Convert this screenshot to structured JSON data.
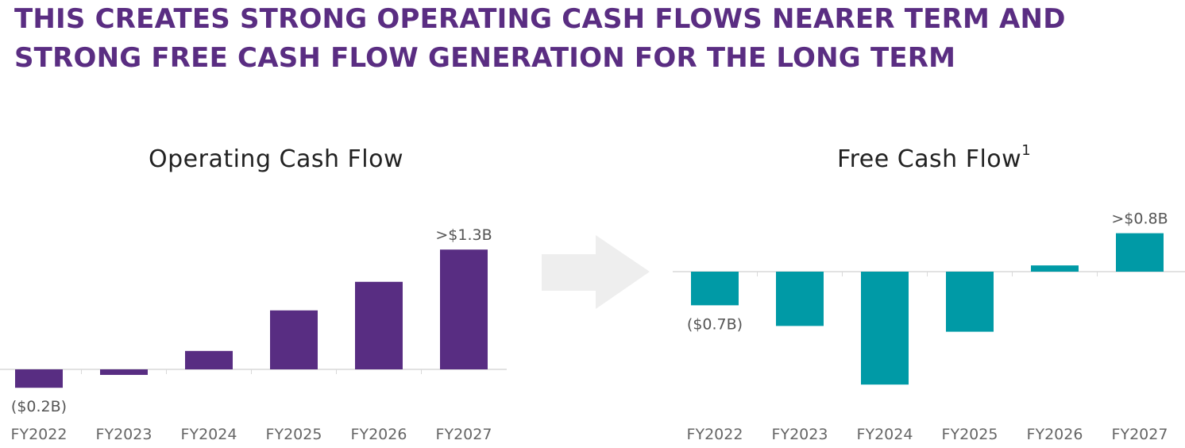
{
  "headline": {
    "line1": "THIS CREATES STRONG OPERATING CASH FLOWS NEARER TERM AND",
    "line2": "STRONG FREE CASH FLOW GENERATION FOR THE LONG TERM"
  },
  "arrow": {
    "icon": "right-arrow-icon",
    "color": "#eeeeee"
  },
  "chart_data": [
    {
      "type": "bar",
      "title": "Operating Cash Flow",
      "title_superscript": "",
      "categories": [
        "FY2022",
        "FY2023",
        "FY2024",
        "FY2025",
        "FY2026",
        "FY2027"
      ],
      "values": [
        -0.2,
        -0.06,
        0.2,
        0.64,
        0.95,
        1.3
      ],
      "labels": {
        "FY2022": "($0.2B)",
        "FY2027": ">$1.3B"
      },
      "unit": "$B",
      "ylim": [
        -0.3,
        1.45
      ],
      "color": "#582d82",
      "grid": false
    },
    {
      "type": "bar",
      "title": "Free Cash Flow",
      "title_superscript": "1",
      "categories": [
        "FY2022",
        "FY2023",
        "FY2024",
        "FY2025",
        "FY2026",
        "FY2027"
      ],
      "values": [
        -0.7,
        -1.13,
        -2.35,
        -1.25,
        0.13,
        0.8
      ],
      "labels": {
        "FY2022": "($0.7B)",
        "FY2027": ">$0.8B"
      },
      "unit": "$B",
      "ylim": [
        -2.5,
        1.1
      ],
      "color": "#009aa6",
      "grid": false
    }
  ]
}
